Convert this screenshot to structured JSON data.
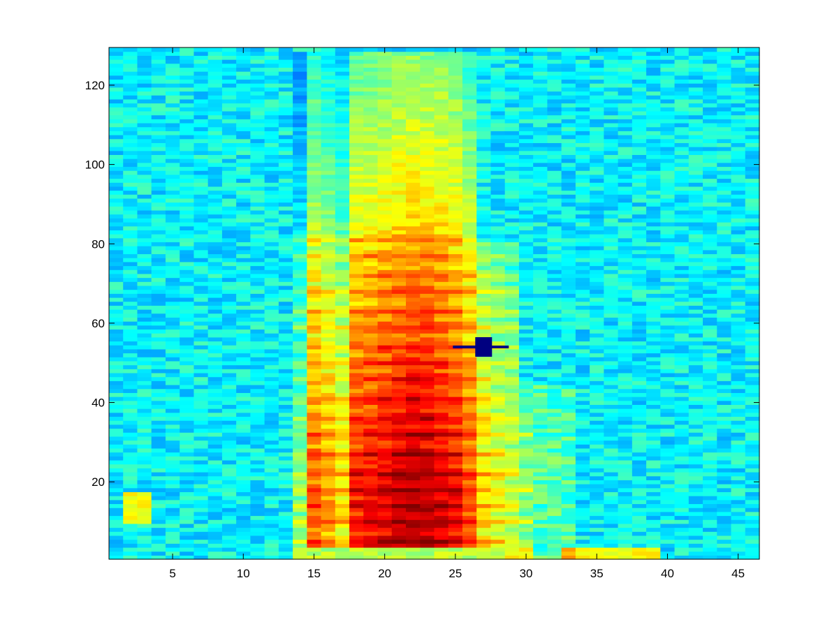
{
  "chart_data": {
    "type": "heatmap",
    "title": "",
    "xlabel": "",
    "ylabel": "",
    "xlim": [
      0.5,
      46.5
    ],
    "ylim": [
      0.5,
      129.5
    ],
    "n_cols": 46,
    "n_rows": 129,
    "colormap": "jet",
    "clim": [
      0,
      1
    ],
    "grid": false,
    "xticks": [
      5,
      10,
      15,
      20,
      25,
      30,
      35,
      40,
      45
    ],
    "yticks": [
      20,
      40,
      60,
      80,
      100,
      120
    ],
    "xtick_labels": [
      "5",
      "10",
      "15",
      "20",
      "25",
      "30",
      "35",
      "40",
      "45"
    ],
    "ytick_labels": [
      "20",
      "40",
      "60",
      "80",
      "100",
      "120"
    ],
    "column_energy": [
      0.38,
      0.4,
      0.4,
      0.38,
      0.37,
      0.38,
      0.37,
      0.37,
      0.38,
      0.38,
      0.38,
      0.38,
      0.4,
      0.52,
      0.78,
      0.72,
      0.66,
      0.86,
      0.88,
      0.9,
      0.93,
      0.94,
      0.94,
      0.92,
      0.88,
      0.8,
      0.66,
      0.62,
      0.58,
      0.52,
      0.46,
      0.42,
      0.41,
      0.4,
      0.4,
      0.4,
      0.4,
      0.39,
      0.39,
      0.39,
      0.38,
      0.38,
      0.38,
      0.38,
      0.37,
      0.37
    ],
    "speech_region": {
      "x_start": 13.5,
      "x_peak": [
        18,
        26
      ],
      "x_end": 30.5,
      "y_bottom": 3.5,
      "y_top_peak": 128
    },
    "harmonic_rows": [
      5,
      10,
      14,
      18,
      22,
      27,
      32,
      36,
      41,
      46,
      50,
      54,
      59,
      63,
      68,
      72,
      77,
      81
    ],
    "annotations": [
      {
        "type": "marker",
        "x": 27,
        "y": 54,
        "color": "#000080"
      }
    ],
    "background_color": "#ffffff"
  }
}
